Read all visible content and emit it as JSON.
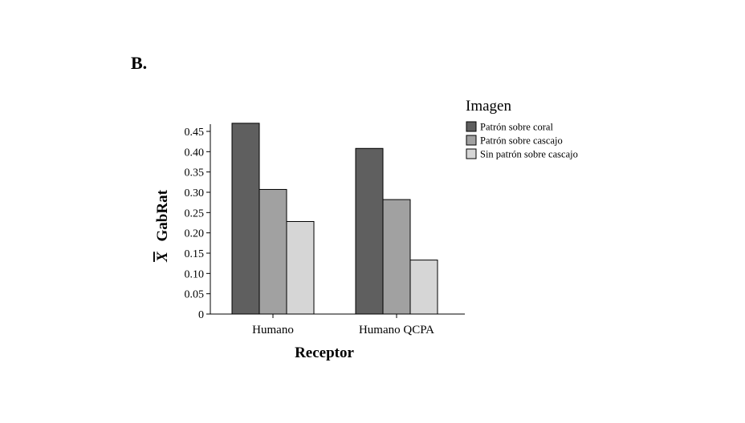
{
  "panel_label": "B.",
  "chart_data": {
    "type": "bar",
    "categories": [
      "Humano",
      "Humano QCPA"
    ],
    "series": [
      {
        "name": "Patrón sobre coral",
        "values": [
          0.47,
          0.408
        ],
        "color": "#5f5f5f"
      },
      {
        "name": "Patrón sobre cascajo",
        "values": [
          0.307,
          0.282
        ],
        "color": "#a1a1a1"
      },
      {
        "name": "Sin patrón sobre cascajo",
        "values": [
          0.228,
          0.133
        ],
        "color": "#d6d6d6"
      }
    ],
    "xlabel": "Receptor",
    "ylabel_symbol": "X",
    "ylabel_text": "GabRat",
    "ylim": [
      0,
      0.48
    ],
    "yticks": [
      0,
      0.05,
      0.1,
      0.15,
      0.2,
      0.25,
      0.3,
      0.35,
      0.4,
      0.45
    ],
    "ytick_labels": [
      "0",
      "0.05",
      "0.10",
      "0.15",
      "0.20",
      "0.25",
      "0.30",
      "0.35",
      "0.40",
      "0.45"
    ],
    "legend": {
      "title": "Imagen",
      "position": "right"
    }
  }
}
